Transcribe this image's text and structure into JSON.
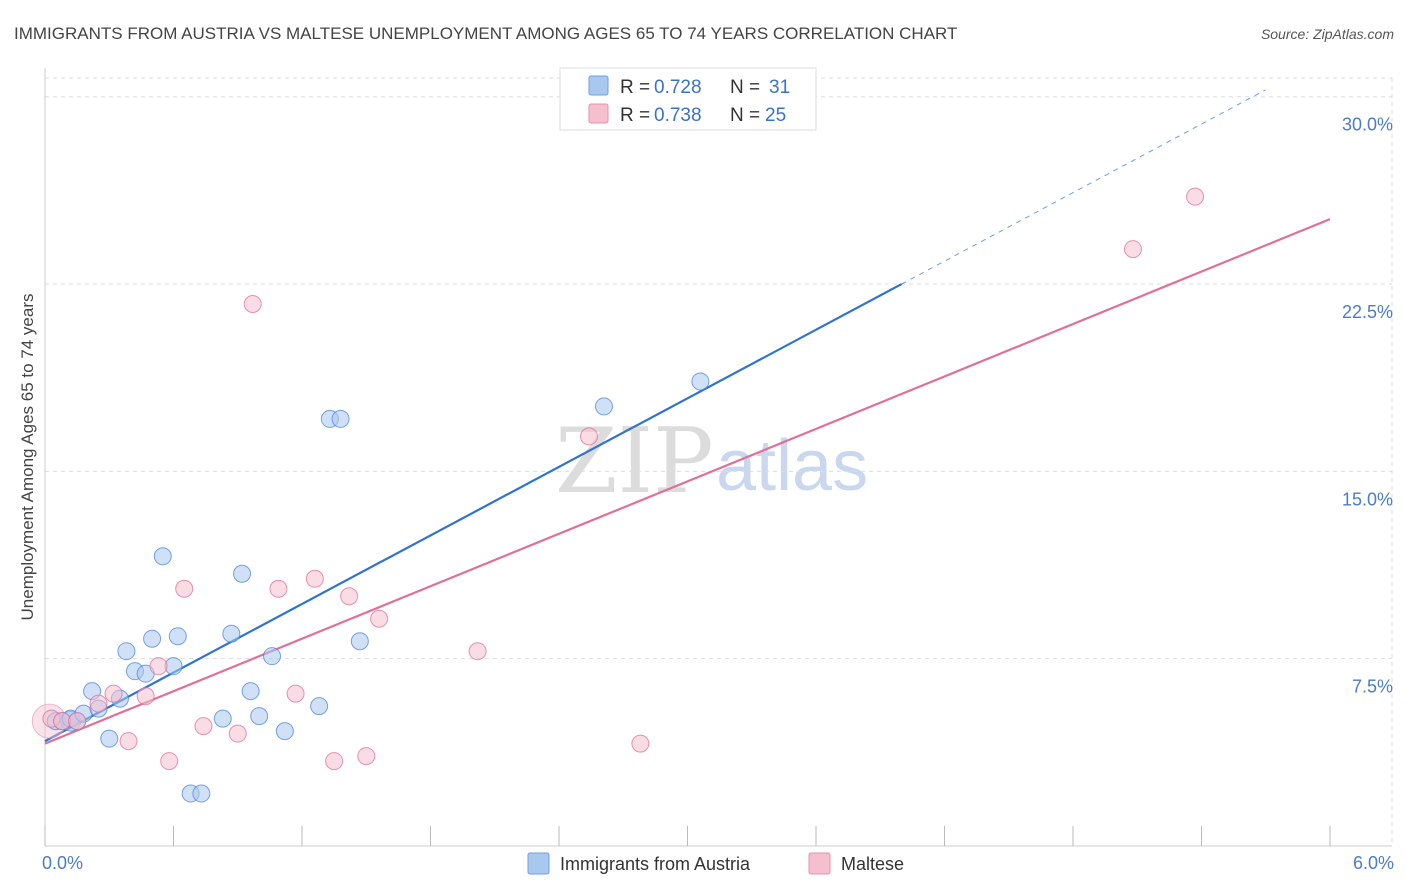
{
  "chart_data": {
    "type": "scatter",
    "title": "IMMIGRANTS FROM AUSTRIA VS MALTESE UNEMPLOYMENT AMONG AGES 65 TO 74 YEARS CORRELATION CHART",
    "source": "Source: ZipAtlas.com",
    "ylabel": "Unemployment Among Ages 65 to 74 years",
    "xlabel": "",
    "xlim": [
      0,
      6
    ],
    "ylim": [
      0,
      30
    ],
    "x_ticks": [
      {
        "value": 0,
        "label": "0.0%"
      },
      {
        "value": 6,
        "label": "6.0%"
      }
    ],
    "y_ticks": [
      {
        "value": 7.5,
        "label": "7.5%"
      },
      {
        "value": 15,
        "label": "15.0%"
      },
      {
        "value": 22.5,
        "label": "22.5%"
      },
      {
        "value": 30,
        "label": "30.0%"
      }
    ],
    "legend": {
      "placement": "top-center",
      "entries": [
        {
          "r_label": "R = ",
          "r_value": "0.728",
          "n_label": "N = ",
          "n_value": "31"
        },
        {
          "r_label": "R = ",
          "r_value": "0.738",
          "n_label": "N = ",
          "n_value": "25"
        }
      ]
    },
    "bottom_legend": [
      "Immigrants from Austria",
      "Maltese"
    ],
    "watermark": {
      "zip": "ZIP",
      "atlas": "atlas"
    },
    "series": [
      {
        "name": "Immigrants from Austria",
        "color": "#4a86d8",
        "fill": "#a9c8f0",
        "trend": {
          "x0": 0,
          "y0": 4.2,
          "x1": 4.0,
          "y1": 22.5,
          "dash_to_x": 5.7
        },
        "points": [
          [
            0.05,
            5.0
          ],
          [
            0.08,
            5.0
          ],
          [
            0.12,
            5.1
          ],
          [
            0.15,
            5.0
          ],
          [
            0.18,
            5.3
          ],
          [
            0.22,
            6.2
          ],
          [
            0.25,
            5.5
          ],
          [
            0.3,
            4.3
          ],
          [
            0.35,
            5.9
          ],
          [
            0.38,
            7.8
          ],
          [
            0.42,
            7.0
          ],
          [
            0.47,
            6.9
          ],
          [
            0.5,
            8.3
          ],
          [
            0.55,
            11.6
          ],
          [
            0.6,
            7.2
          ],
          [
            0.62,
            8.4
          ],
          [
            0.68,
            2.1
          ],
          [
            0.73,
            2.1
          ],
          [
            0.83,
            5.1
          ],
          [
            0.87,
            8.5
          ],
          [
            0.92,
            10.9
          ],
          [
            0.96,
            6.2
          ],
          [
            1.0,
            5.2
          ],
          [
            1.06,
            7.6
          ],
          [
            1.12,
            4.6
          ],
          [
            1.28,
            5.6
          ],
          [
            1.33,
            17.1
          ],
          [
            1.38,
            17.1
          ],
          [
            1.47,
            8.2
          ],
          [
            2.61,
            17.6
          ],
          [
            3.06,
            18.6
          ]
        ]
      },
      {
        "name": "Maltese",
        "color": "#e07098",
        "fill": "#f5bfd0",
        "trend": {
          "x0": 0,
          "y0": 4.1,
          "x1": 6.0,
          "y1": 25.1
        },
        "points": [
          [
            0.03,
            5.1
          ],
          [
            0.08,
            5.0
          ],
          [
            0.15,
            5.0
          ],
          [
            0.25,
            5.7
          ],
          [
            0.32,
            6.1
          ],
          [
            0.39,
            4.2
          ],
          [
            0.47,
            6.0
          ],
          [
            0.53,
            7.2
          ],
          [
            0.58,
            3.4
          ],
          [
            0.65,
            10.3
          ],
          [
            0.74,
            4.8
          ],
          [
            0.9,
            4.5
          ],
          [
            0.97,
            21.7
          ],
          [
            1.09,
            10.3
          ],
          [
            1.17,
            6.1
          ],
          [
            1.26,
            10.7
          ],
          [
            1.35,
            3.4
          ],
          [
            1.42,
            10.0
          ],
          [
            1.5,
            3.6
          ],
          [
            1.56,
            9.1
          ],
          [
            2.02,
            7.8
          ],
          [
            2.54,
            16.4
          ],
          [
            2.78,
            4.1
          ],
          [
            5.08,
            23.9
          ],
          [
            5.37,
            26.0
          ]
        ]
      }
    ]
  },
  "colors": {
    "blue_text": "#4a7cc7",
    "legend_value": "#3a72c8",
    "blue_line": "#2f74d0",
    "pink_line": "#e07098"
  }
}
